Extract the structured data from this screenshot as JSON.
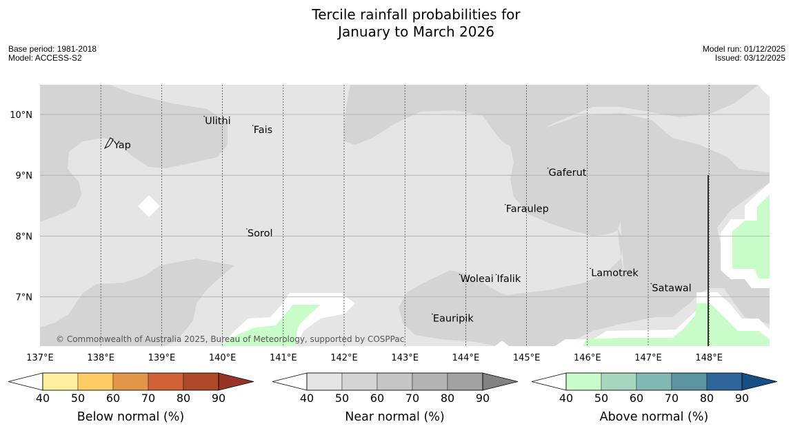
{
  "title_line1": "Tercile rainfall probabilities for",
  "title_line2": "January to March 2026",
  "meta_left": [
    "Base period: 1981-2018",
    "Model: ACCESS-S2"
  ],
  "meta_right": [
    "Model run: 01/12/2025",
    "Issued: 03/12/2025"
  ],
  "copyright": "© Commonwealth of Australia 2025, Bureau of Meteorology, supported by COSPPac",
  "map": {
    "lon_range": [
      137,
      149
    ],
    "lat_range": [
      6.2,
      10.5
    ],
    "lon_ticks": [
      137,
      138,
      139,
      140,
      141,
      142,
      143,
      144,
      145,
      146,
      147,
      148
    ],
    "lon_labels": [
      "137°E",
      "138°E",
      "139°E",
      "140°E",
      "141°E",
      "142°E",
      "143°E",
      "144°E",
      "145°E",
      "146°E",
      "147°E",
      "148°E"
    ],
    "lat_ticks": [
      7,
      8,
      9,
      10
    ],
    "lat_labels": [
      "7°N",
      "8°N",
      "9°N",
      "10°N"
    ],
    "places": [
      {
        "name": "Yap",
        "lon": 138.2,
        "lat": 9.5
      },
      {
        "name": "Ulithi",
        "lon": 139.7,
        "lat": 9.9
      },
      {
        "name": "Fais",
        "lon": 140.5,
        "lat": 9.75
      },
      {
        "name": "Gaferut",
        "lon": 145.35,
        "lat": 9.05
      },
      {
        "name": "Faraulep",
        "lon": 144.65,
        "lat": 8.45
      },
      {
        "name": "Sorol",
        "lon": 140.4,
        "lat": 8.05
      },
      {
        "name": "Lamotrek",
        "lon": 146.05,
        "lat": 7.4
      },
      {
        "name": "Woleai",
        "lon": 143.9,
        "lat": 7.3
      },
      {
        "name": "Ifalik",
        "lon": 144.5,
        "lat": 7.3
      },
      {
        "name": "Satawal",
        "lon": 147.05,
        "lat": 7.15
      },
      {
        "name": "Eauripik",
        "lon": 143.45,
        "lat": 6.65
      }
    ]
  },
  "colorbars": [
    {
      "label": "Below normal (%)",
      "ticks": [
        "40",
        "50",
        "60",
        "70",
        "80",
        "90"
      ],
      "colors": [
        "#fff0a0",
        "#fecb65",
        "#e1964a",
        "#cf6236",
        "#ae4a2a"
      ],
      "over": "#983425"
    },
    {
      "label": "Near normal (%)",
      "ticks": [
        "40",
        "50",
        "60",
        "70",
        "80",
        "90"
      ],
      "colors": [
        "#e5e5e5",
        "#d4d4d4",
        "#c6c6c6",
        "#b3b3b3",
        "#a2a2a2"
      ],
      "over": "#828282"
    },
    {
      "label": "Above normal (%)",
      "ticks": [
        "40",
        "50",
        "60",
        "70",
        "80",
        "90"
      ],
      "colors": [
        "#c8fcc8",
        "#a6d7bf",
        "#82b8b3",
        "#5b93a0",
        "#2f6699"
      ],
      "over": "#174e84"
    }
  ]
}
